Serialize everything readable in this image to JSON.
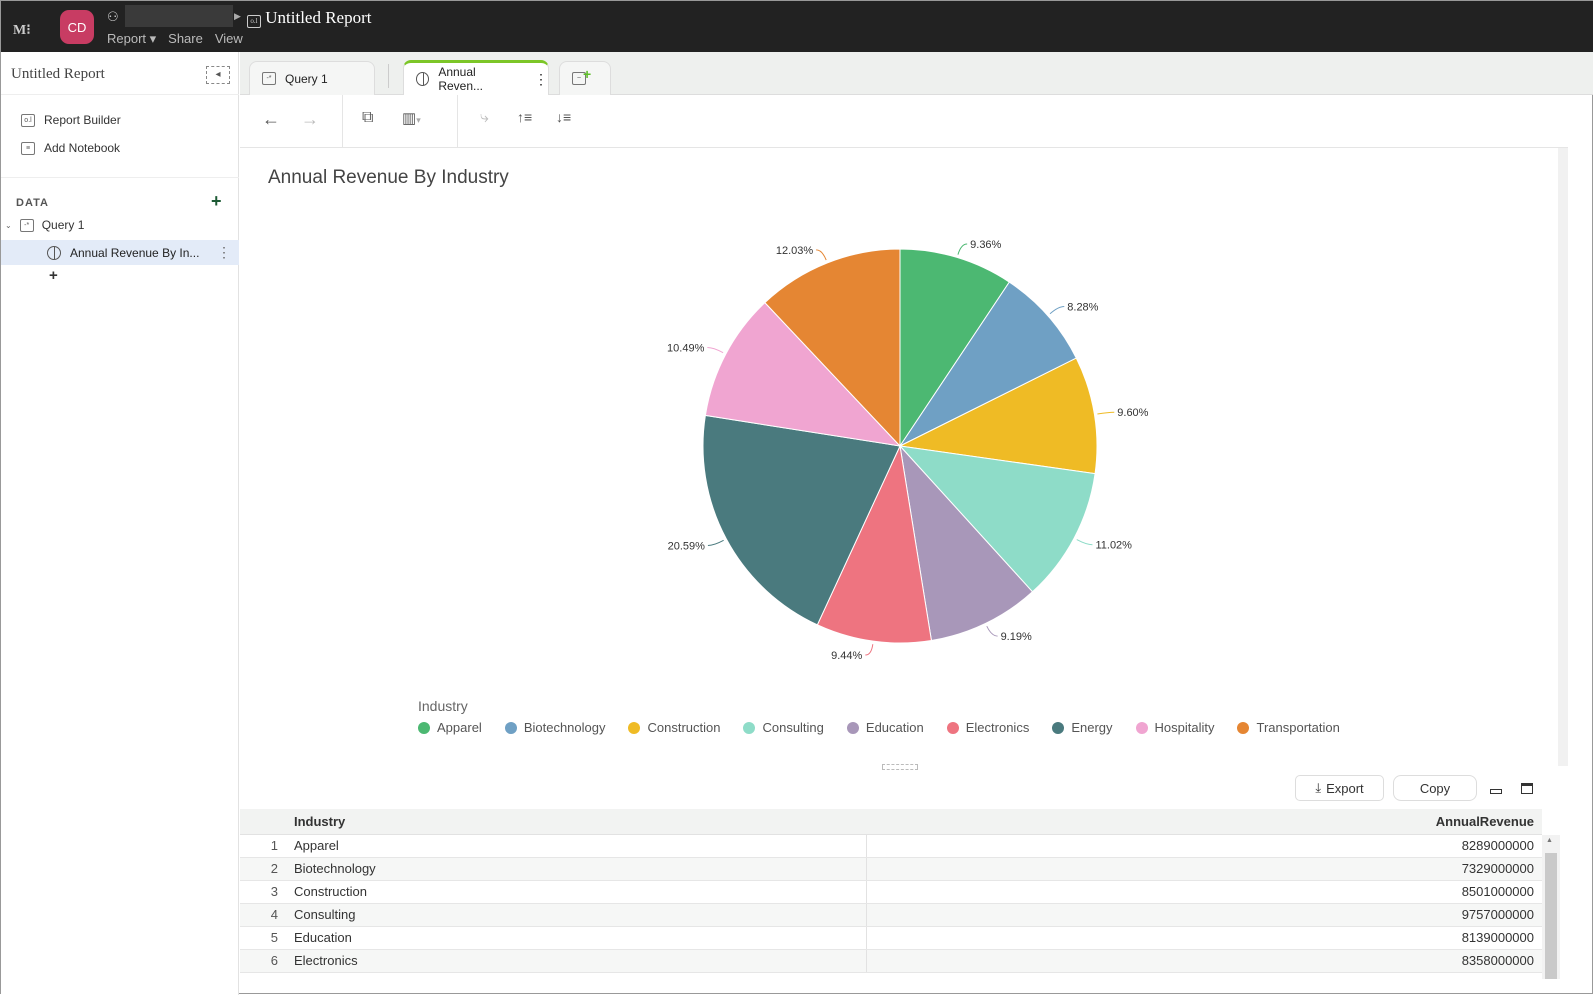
{
  "topbar": {
    "logo": "M",
    "avatar": "CD",
    "report_title": "Untitled Report",
    "menu": [
      "Report ▾",
      "Share",
      "View"
    ]
  },
  "sidebar": {
    "title": "Untitled Report",
    "items": [
      {
        "label": "Report Builder",
        "icon": "report-builder-icon"
      },
      {
        "label": "Add Notebook",
        "icon": "notebook-icon"
      }
    ],
    "data_label": "DATA",
    "query": "Query 1",
    "selected": "Annual Revenue By In..."
  },
  "tabs": [
    {
      "label": "Query 1",
      "icon": "query-icon"
    },
    {
      "label": "Annual Reven...",
      "icon": "pie-chart-icon",
      "active": true
    }
  ],
  "chart_data": {
    "type": "pie",
    "title": "Annual Revenue By Industry",
    "legend_title": "Industry",
    "legend_placement": "bottom",
    "categories": [
      "Apparel",
      "Biotechnology",
      "Construction",
      "Consulting",
      "Education",
      "Electronics",
      "Energy",
      "Hospitality",
      "Transportation"
    ],
    "values": [
      9.36,
      8.28,
      9.6,
      11.02,
      9.19,
      9.44,
      20.59,
      10.49,
      12.03
    ],
    "labels": [
      "9.36%",
      "8.28%",
      "9.60%",
      "11.02%",
      "9.19%",
      "9.44%",
      "20.59%",
      "10.49%",
      "12.03%"
    ],
    "colors": [
      "#4cb872",
      "#6fa0c4",
      "#efbb25",
      "#8edcc8",
      "#a897b9",
      "#ee7480",
      "#4a7a7e",
      "#f0a5d1",
      "#e58633"
    ]
  },
  "table": {
    "export_label": "Export",
    "copy_label": "Copy",
    "columns": [
      "Industry",
      "AnnualRevenue"
    ],
    "rows": [
      [
        "1",
        "Apparel",
        "8289000000"
      ],
      [
        "2",
        "Biotechnology",
        "7329000000"
      ],
      [
        "3",
        "Construction",
        "8501000000"
      ],
      [
        "4",
        "Consulting",
        "9757000000"
      ],
      [
        "5",
        "Education",
        "8139000000"
      ],
      [
        "6",
        "Electronics",
        "8358000000"
      ]
    ]
  }
}
